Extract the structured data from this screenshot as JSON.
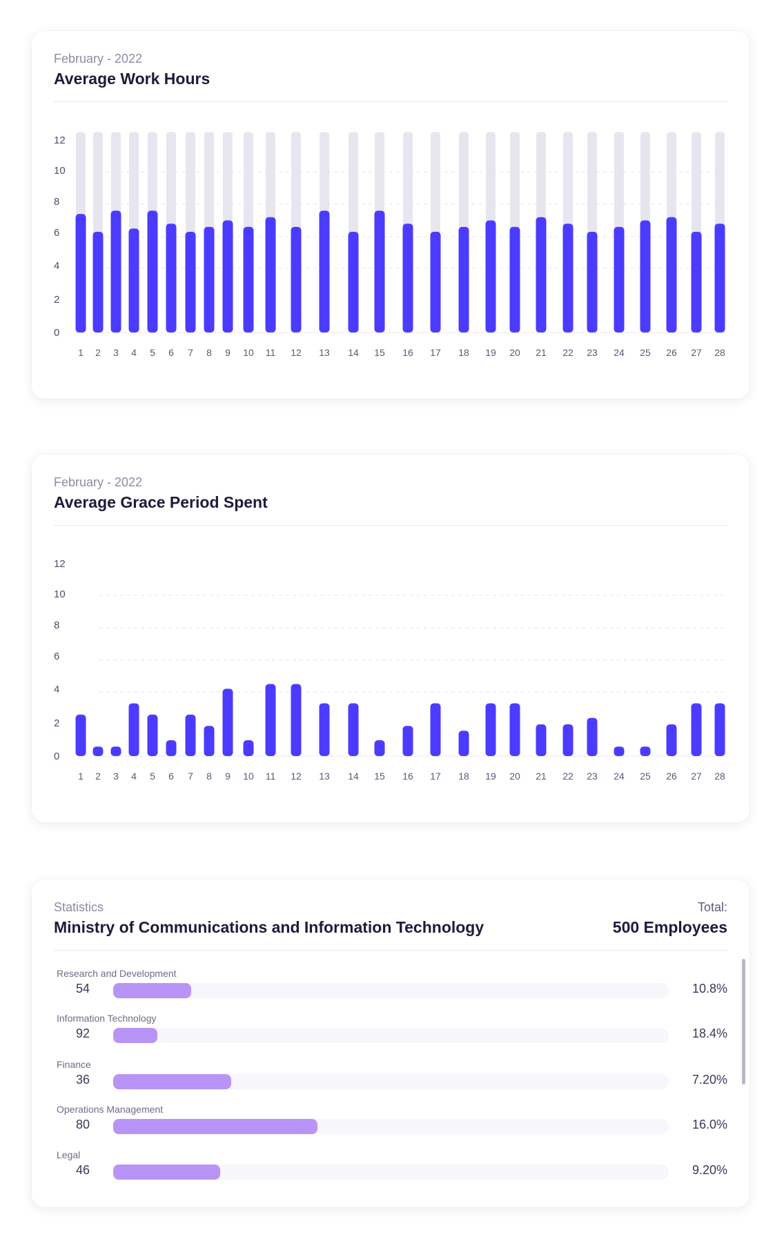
{
  "charts": [
    {
      "subtitle": "February - 2022",
      "title": "Average Work Hours"
    },
    {
      "subtitle": "February - 2022",
      "title": "Average Grace Period Spent"
    }
  ],
  "chart_data": [
    {
      "type": "bar",
      "title": "Average Work Hours",
      "subtitle": "February - 2022",
      "xlabel": "",
      "ylabel": "",
      "ylim": [
        0,
        12.5
      ],
      "yticks": [
        0,
        2,
        4,
        6,
        8,
        10,
        12
      ],
      "grid": "dashed horizontal",
      "background_max": 12.5,
      "categories": [
        "1",
        "2",
        "3",
        "4",
        "5",
        "6",
        "7",
        "8",
        "9",
        "10",
        "11",
        "12",
        "13",
        "14",
        "15",
        "16",
        "17",
        "18",
        "19",
        "20",
        "21",
        "22",
        "23",
        "24",
        "25",
        "26",
        "27",
        "28"
      ],
      "values": [
        7.4,
        6.3,
        7.6,
        6.5,
        7.6,
        6.8,
        6.3,
        6.6,
        7.0,
        6.6,
        7.2,
        6.6,
        7.6,
        6.3,
        7.6,
        6.8,
        6.3,
        6.6,
        7.0,
        6.6,
        7.2,
        6.8,
        6.3,
        6.6,
        7.0,
        7.2,
        6.3,
        6.8
      ],
      "colors": {
        "bar": "#4b3bff",
        "background_bar": "#e7e6ef"
      }
    },
    {
      "type": "bar",
      "title": "Average Grace Period Spent",
      "subtitle": "February - 2022",
      "xlabel": "",
      "ylabel": "",
      "ylim": [
        0,
        12.5
      ],
      "yticks": [
        0,
        2,
        4,
        6,
        8,
        10,
        12
      ],
      "grid": "dashed horizontal",
      "categories": [
        "1",
        "2",
        "3",
        "4",
        "5",
        "6",
        "7",
        "8",
        "9",
        "10",
        "11",
        "12",
        "13",
        "14",
        "15",
        "16",
        "17",
        "18",
        "19",
        "20",
        "21",
        "22",
        "23",
        "24",
        "25",
        "26",
        "27",
        "28"
      ],
      "values": [
        2.6,
        0.6,
        0.6,
        3.3,
        2.6,
        1.0,
        2.6,
        1.9,
        4.2,
        1.0,
        4.5,
        4.5,
        3.3,
        3.3,
        1.0,
        1.9,
        3.3,
        1.6,
        3.3,
        3.3,
        2.0,
        2.0,
        2.4,
        0.6,
        0.6,
        2.0,
        3.3,
        3.3
      ],
      "colors": {
        "bar": "#4b3bff"
      }
    }
  ],
  "statistics": {
    "label": "Statistics",
    "title": "Ministry of Communications and Information Technology",
    "total_label": "Total:",
    "total_value": "500 Employees",
    "departments": [
      {
        "name": "Research and Development",
        "count": "54",
        "percent": "10.8%",
        "fill": 0.14
      },
      {
        "name": "Information Technology",
        "count": "92",
        "percent": "18.4%",
        "fill": 0.08
      },
      {
        "name": "Finance",
        "count": "36",
        "percent": "7.20%",
        "fill": 0.213
      },
      {
        "name": "Operations Management",
        "count": "80",
        "percent": "16.0%",
        "fill": 0.368
      },
      {
        "name": "Legal",
        "count": "46",
        "percent": "9.20%",
        "fill": 0.193
      }
    ],
    "colors": {
      "fill": "#b994f7",
      "track": "#f6f6fb"
    }
  }
}
